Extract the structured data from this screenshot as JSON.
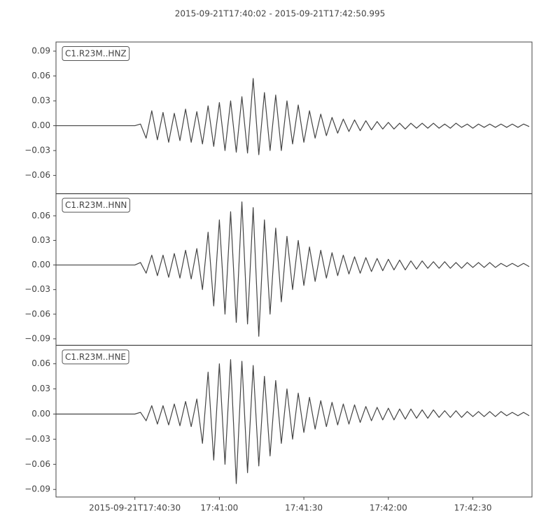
{
  "chart_data": {
    "type": "line",
    "title": "2015-09-21T17:40:02  -  2015-09-21T17:42:50.995",
    "layout": "stacked",
    "x": [
      "2015-09-21T17:40:02",
      "2015-09-21T17:40:04",
      "2015-09-21T17:40:06",
      "2015-09-21T17:40:08",
      "2015-09-21T17:40:10",
      "2015-09-21T17:40:12",
      "2015-09-21T17:40:14",
      "2015-09-21T17:40:16",
      "2015-09-21T17:40:18",
      "2015-09-21T17:40:20",
      "2015-09-21T17:40:22",
      "2015-09-21T17:40:24",
      "2015-09-21T17:40:26",
      "2015-09-21T17:40:28",
      "2015-09-21T17:40:30",
      "2015-09-21T17:40:32",
      "2015-09-21T17:40:34",
      "2015-09-21T17:40:36",
      "2015-09-21T17:40:38",
      "2015-09-21T17:40:40",
      "2015-09-21T17:40:42",
      "2015-09-21T17:40:44",
      "2015-09-21T17:40:46",
      "2015-09-21T17:40:48",
      "2015-09-21T17:40:50",
      "2015-09-21T17:40:52",
      "2015-09-21T17:40:54",
      "2015-09-21T17:40:56",
      "2015-09-21T17:40:58",
      "2015-09-21T17:41:00",
      "2015-09-21T17:41:02",
      "2015-09-21T17:41:04",
      "2015-09-21T17:41:06",
      "2015-09-21T17:41:08",
      "2015-09-21T17:41:10",
      "2015-09-21T17:41:12",
      "2015-09-21T17:41:14",
      "2015-09-21T17:41:16",
      "2015-09-21T17:41:18",
      "2015-09-21T17:41:20",
      "2015-09-21T17:41:22",
      "2015-09-21T17:41:24",
      "2015-09-21T17:41:26",
      "2015-09-21T17:41:28",
      "2015-09-21T17:41:30",
      "2015-09-21T17:41:32",
      "2015-09-21T17:41:34",
      "2015-09-21T17:41:36",
      "2015-09-21T17:41:38",
      "2015-09-21T17:41:40",
      "2015-09-21T17:41:42",
      "2015-09-21T17:41:44",
      "2015-09-21T17:41:46",
      "2015-09-21T17:41:48",
      "2015-09-21T17:41:50",
      "2015-09-21T17:41:52",
      "2015-09-21T17:41:54",
      "2015-09-21T17:41:56",
      "2015-09-21T17:41:58",
      "2015-09-21T17:42:00",
      "2015-09-21T17:42:02",
      "2015-09-21T17:42:04",
      "2015-09-21T17:42:06",
      "2015-09-21T17:42:08",
      "2015-09-21T17:42:10",
      "2015-09-21T17:42:12",
      "2015-09-21T17:42:14",
      "2015-09-21T17:42:16",
      "2015-09-21T17:42:18",
      "2015-09-21T17:42:20",
      "2015-09-21T17:42:22",
      "2015-09-21T17:42:24",
      "2015-09-21T17:42:26",
      "2015-09-21T17:42:28",
      "2015-09-21T17:42:30",
      "2015-09-21T17:42:32",
      "2015-09-21T17:42:34",
      "2015-09-21T17:42:36",
      "2015-09-21T17:42:38",
      "2015-09-21T17:42:40",
      "2015-09-21T17:42:42",
      "2015-09-21T17:42:44",
      "2015-09-21T17:42:46",
      "2015-09-21T17:42:48",
      "2015-09-21T17:42:50"
    ],
    "xlim": [
      "2015-09-21T17:40:02",
      "2015-09-21T17:42:50.995"
    ],
    "xticks": [
      {
        "value": "2015-09-21T17:40:30",
        "label": "2015-09-21T17:40:30"
      },
      {
        "value": "2015-09-21T17:41:00",
        "label": "17:41:00"
      },
      {
        "value": "2015-09-21T17:41:30",
        "label": "17:41:30"
      },
      {
        "value": "2015-09-21T17:42:00",
        "label": "17:42:00"
      },
      {
        "value": "2015-09-21T17:42:30",
        "label": "17:42:30"
      }
    ],
    "series": [
      {
        "name": "C1.R23M..HNZ",
        "color": "#444444",
        "ylim": [
          -0.082,
          0.101
        ],
        "yticks": [
          {
            "value": -0.06,
            "label": "−0.06"
          },
          {
            "value": -0.03,
            "label": "−0.03"
          },
          {
            "value": 0,
            "label": "0.00"
          },
          {
            "value": 0.03,
            "label": "0.03"
          },
          {
            "value": 0.06,
            "label": "0.06"
          },
          {
            "value": 0.09,
            "label": "0.09"
          }
        ],
        "values": [
          0,
          0,
          0,
          0,
          0,
          0,
          0,
          0,
          0,
          0,
          0,
          0,
          0,
          0,
          0,
          0.002,
          -0.015,
          0.018,
          -0.017,
          0.016,
          -0.02,
          0.015,
          -0.018,
          0.02,
          -0.02,
          0.017,
          -0.022,
          0.024,
          -0.025,
          0.028,
          -0.03,
          0.03,
          -0.032,
          0.035,
          -0.033,
          0.057,
          -0.035,
          0.04,
          -0.03,
          0.037,
          -0.03,
          0.03,
          -0.022,
          0.025,
          -0.02,
          0.018,
          -0.015,
          0.014,
          -0.012,
          0.01,
          -0.009,
          0.008,
          -0.007,
          0.007,
          -0.006,
          0.006,
          -0.005,
          0.005,
          -0.004,
          0.004,
          -0.004,
          0.003,
          -0.004,
          0.003,
          -0.003,
          0.003,
          -0.003,
          0.003,
          -0.003,
          0.002,
          -0.003,
          0.003,
          -0.002,
          0.002,
          -0.003,
          0.002,
          -0.002,
          0.002,
          -0.002,
          0.002,
          -0.002,
          0.002,
          -0.002,
          0.002,
          -0.001
        ]
      },
      {
        "name": "C1.R23M..HNN",
        "color": "#444444",
        "ylim": [
          -0.098,
          0.087
        ],
        "yticks": [
          {
            "value": -0.09,
            "label": "−0.09"
          },
          {
            "value": -0.06,
            "label": "−0.06"
          },
          {
            "value": -0.03,
            "label": "−0.03"
          },
          {
            "value": 0,
            "label": "0.00"
          },
          {
            "value": 0.03,
            "label": "0.03"
          },
          {
            "value": 0.06,
            "label": "0.06"
          }
        ],
        "values": [
          0,
          0,
          0,
          0,
          0,
          0,
          0,
          0,
          0,
          0,
          0,
          0,
          0,
          0,
          0,
          0.003,
          -0.01,
          0.012,
          -0.013,
          0.012,
          -0.015,
          0.014,
          -0.016,
          0.018,
          -0.017,
          0.02,
          -0.03,
          0.04,
          -0.05,
          0.055,
          -0.06,
          0.065,
          -0.07,
          0.077,
          -0.072,
          0.07,
          -0.087,
          0.055,
          -0.06,
          0.045,
          -0.045,
          0.035,
          -0.03,
          0.03,
          -0.025,
          0.022,
          -0.02,
          0.018,
          -0.016,
          0.015,
          -0.013,
          0.012,
          -0.011,
          0.01,
          -0.01,
          0.009,
          -0.008,
          0.008,
          -0.007,
          0.007,
          -0.006,
          0.006,
          -0.006,
          0.005,
          -0.005,
          0.005,
          -0.004,
          0.004,
          -0.004,
          0.004,
          -0.004,
          0.003,
          -0.004,
          0.003,
          -0.003,
          0.003,
          -0.003,
          0.003,
          -0.003,
          0.002,
          -0.002,
          0.002,
          -0.002,
          0.002,
          -0.002
        ]
      },
      {
        "name": "C1.R23M..HNE",
        "color": "#444444",
        "ylim": [
          -0.099,
          0.082
        ],
        "yticks": [
          {
            "value": -0.09,
            "label": "−0.09"
          },
          {
            "value": -0.06,
            "label": "−0.06"
          },
          {
            "value": -0.03,
            "label": "−0.03"
          },
          {
            "value": 0,
            "label": "0.00"
          },
          {
            "value": 0.03,
            "label": "0.03"
          },
          {
            "value": 0.06,
            "label": "0.06"
          }
        ],
        "values": [
          0,
          0,
          0,
          0,
          0,
          0,
          0,
          0,
          0,
          0,
          0,
          0,
          0,
          0,
          0,
          0.002,
          -0.008,
          0.01,
          -0.012,
          0.01,
          -0.013,
          0.012,
          -0.014,
          0.015,
          -0.015,
          0.018,
          -0.035,
          0.05,
          -0.055,
          0.06,
          -0.06,
          0.065,
          -0.083,
          0.063,
          -0.07,
          0.058,
          -0.062,
          0.045,
          -0.05,
          0.04,
          -0.035,
          0.03,
          -0.03,
          0.025,
          -0.022,
          0.02,
          -0.018,
          0.016,
          -0.015,
          0.014,
          -0.013,
          0.012,
          -0.012,
          0.011,
          -0.01,
          0.009,
          -0.008,
          0.008,
          -0.007,
          0.007,
          -0.007,
          0.006,
          -0.006,
          0.006,
          -0.005,
          0.005,
          -0.005,
          0.005,
          -0.004,
          0.004,
          -0.004,
          0.004,
          -0.004,
          0.003,
          -0.003,
          0.003,
          -0.003,
          0.003,
          -0.003,
          0.003,
          -0.002,
          0.002,
          -0.002,
          0.002,
          -0.002
        ]
      }
    ]
  }
}
